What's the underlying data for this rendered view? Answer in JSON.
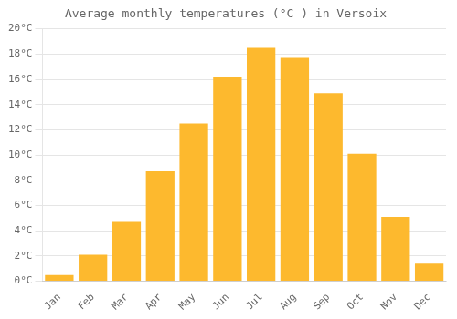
{
  "chart_data": {
    "type": "bar",
    "title": "Average monthly temperatures (°C ) in Versoix",
    "categories": [
      "Jan",
      "Feb",
      "Mar",
      "Apr",
      "May",
      "Jun",
      "Jul",
      "Aug",
      "Sep",
      "Oct",
      "Nov",
      "Dec"
    ],
    "values": [
      0.5,
      2.1,
      4.7,
      8.7,
      12.5,
      16.2,
      18.5,
      17.7,
      14.9,
      10.1,
      5.1,
      1.4
    ],
    "color": "#FDB92E",
    "ylim": [
      0,
      20
    ],
    "yticks": [
      {
        "value": 0,
        "label": "0°C"
      },
      {
        "value": 2,
        "label": "2°C"
      },
      {
        "value": 4,
        "label": "4°C"
      },
      {
        "value": 6,
        "label": "6°C"
      },
      {
        "value": 8,
        "label": "8°C"
      },
      {
        "value": 10,
        "label": "10°C"
      },
      {
        "value": 12,
        "label": "12°C"
      },
      {
        "value": 14,
        "label": "14°C"
      },
      {
        "value": 16,
        "label": "16°C"
      },
      {
        "value": 18,
        "label": "18°C"
      },
      {
        "value": 20,
        "label": "20°C"
      }
    ],
    "grid": true
  }
}
